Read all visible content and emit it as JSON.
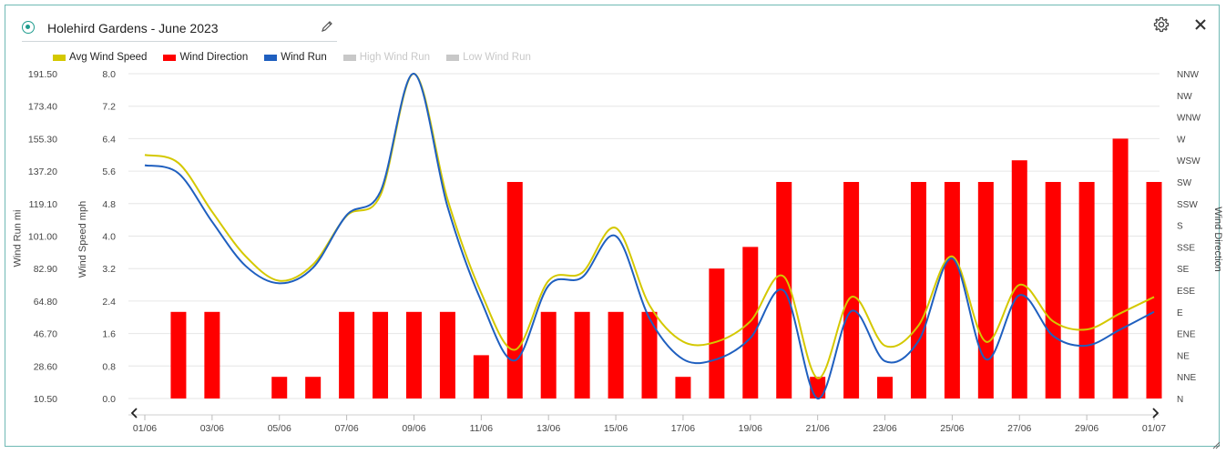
{
  "widget": {
    "title": "Holehird Gardens - June 2023"
  },
  "icons": {
    "status": "radio-dot-icon",
    "edit": "pencil-icon",
    "settings": "gear-icon",
    "close": "close-icon",
    "prev": "chevron-left-icon",
    "next": "chevron-right-icon",
    "resize": "resize-handle-icon"
  },
  "legend": [
    {
      "label": "Avg Wind Speed",
      "color": "#d4c800",
      "enabled": true
    },
    {
      "label": "Wind Direction",
      "color": "#ff0000",
      "enabled": true
    },
    {
      "label": "Wind Run",
      "color": "#1f5fbf",
      "enabled": true
    },
    {
      "label": "High Wind Run",
      "color": "#c8c8c8",
      "enabled": false
    },
    {
      "label": "Low Wind Run",
      "color": "#c8c8c8",
      "enabled": false
    }
  ],
  "chart_data": {
    "type": "bar",
    "title": "Holehird Gardens - June 2023",
    "axes": {
      "wind_run": {
        "label": "Wind Run mi",
        "ticks": [
          "191.50",
          "173.40",
          "155.30",
          "137.20",
          "119.10",
          "101.00",
          "82.90",
          "64.80",
          "46.70",
          "28.60",
          "10.50"
        ],
        "range": [
          10.5,
          191.5
        ]
      },
      "wind_speed": {
        "label": "Wind Speed mph",
        "ticks": [
          "8.0",
          "7.2",
          "6.4",
          "5.6",
          "4.8",
          "4.0",
          "3.2",
          "2.4",
          "1.6",
          "0.8",
          "0.0"
        ],
        "range": [
          0,
          8
        ]
      },
      "wind_direction": {
        "label": "Wind Direction",
        "ticks": [
          "NNW",
          "NW",
          "WNW",
          "W",
          "WSW",
          "SW",
          "SSW",
          "S",
          "SSE",
          "SE",
          "ESE",
          "E",
          "ENE",
          "NE",
          "NNE",
          "N"
        ]
      },
      "x_ticks": [
        "01/06",
        "03/06",
        "05/06",
        "07/06",
        "09/06",
        "11/06",
        "13/06",
        "15/06",
        "17/06",
        "19/06",
        "21/06",
        "23/06",
        "25/06",
        "27/06",
        "29/06",
        "01/07"
      ]
    },
    "x": [
      "01/06",
      "02/06",
      "03/06",
      "04/06",
      "05/06",
      "06/06",
      "07/06",
      "08/06",
      "09/06",
      "10/06",
      "11/06",
      "12/06",
      "13/06",
      "14/06",
      "15/06",
      "16/06",
      "17/06",
      "18/06",
      "19/06",
      "20/06",
      "21/06",
      "22/06",
      "23/06",
      "24/06",
      "25/06",
      "26/06",
      "27/06",
      "28/06",
      "29/06",
      "30/06",
      "01/07"
    ],
    "series": [
      {
        "name": "Wind Direction",
        "type": "bar",
        "color": "#ff0000",
        "values": [
          null,
          4,
          4,
          null,
          1,
          1,
          4,
          4,
          4,
          4,
          2,
          10,
          4,
          4,
          4,
          4,
          1,
          6,
          7,
          10,
          1,
          10,
          1,
          10,
          10,
          10,
          11,
          10,
          10,
          12,
          10
        ]
      },
      {
        "name": "Avg Wind Speed",
        "type": "line",
        "color": "#d4c800",
        "values": [
          6.0,
          5.8,
          4.6,
          3.5,
          2.9,
          3.3,
          4.5,
          5.0,
          8.0,
          4.9,
          2.6,
          1.2,
          2.9,
          3.1,
          4.2,
          2.3,
          1.4,
          1.4,
          1.9,
          3.0,
          0.5,
          2.5,
          1.3,
          1.8,
          3.5,
          1.4,
          2.8,
          1.9,
          1.7,
          2.1,
          2.5
        ]
      },
      {
        "name": "Wind Run",
        "type": "line",
        "color": "#1f5fbf",
        "values": [
          140.5,
          136.0,
          109.0,
          84.3,
          74.7,
          83.4,
          112.7,
          125.7,
          191.5,
          117.3,
          64.8,
          31.7,
          73.4,
          78.0,
          101.0,
          55.2,
          32.4,
          32.4,
          44.2,
          70.5,
          10.5,
          59.2,
          31.3,
          42.6,
          88.5,
          32.4,
          68.1,
          45.4,
          40.0,
          49.0,
          58.8
        ]
      }
    ]
  }
}
